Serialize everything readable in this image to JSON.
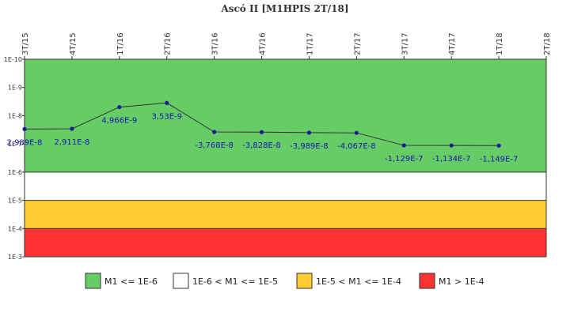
{
  "chart_data": {
    "type": "line",
    "title": "Ascó II [M1HPIS 2T/18]",
    "y_scale": "log",
    "y_inverted": true,
    "ylim": [
      0.001,
      1e-10
    ],
    "y_ticks": [
      "1E-10",
      "1E-9",
      "1E-8",
      "1E-7",
      "1E-6",
      "1E-5",
      "1E-4",
      "1E-3"
    ],
    "x": [
      "3T/15",
      "4T/15",
      "1T/16",
      "2T/16",
      "3T/16",
      "4T/16",
      "1T/17",
      "2T/17",
      "3T/17",
      "4T/17",
      "1T/18",
      "2T/18"
    ],
    "series": [
      {
        "values": [
          2.989e-08,
          2.911e-08,
          4.966e-09,
          3.53e-09,
          -3.768e-08,
          -3.828e-08,
          -3.989e-08,
          -4.067e-08,
          -1.129e-07,
          -1.134e-07,
          -1.149e-07,
          null
        ],
        "labels": [
          "2,989E-8",
          "2,911E-8",
          "4,966E-9",
          "3,53E-9",
          "-3,768E-8",
          "-3,828E-8",
          "-3,989E-8",
          "-4,067E-8",
          "-1,129E-7",
          "-1,134E-7",
          "-1,149E-7",
          ""
        ]
      }
    ],
    "bands": [
      {
        "from": 1e-10,
        "to": 1e-06,
        "color": "#66cc66",
        "legend": "M1 <= 1E-6"
      },
      {
        "from": 1e-06,
        "to": 1e-05,
        "color": "#ffffff",
        "legend": "1E-6 < M1 <= 1E-5"
      },
      {
        "from": 1e-05,
        "to": 0.0001,
        "color": "#ffcc33",
        "legend": "1E-5 < M1 <= 1E-4"
      },
      {
        "from": 0.0001,
        "to": 0.001,
        "color": "#ff3333",
        "legend": "M1 > 1E-4"
      }
    ],
    "line_color": "#333333",
    "marker_color": "#1a1a99",
    "label_color": "#1515aa",
    "legend_position": "bottom"
  }
}
